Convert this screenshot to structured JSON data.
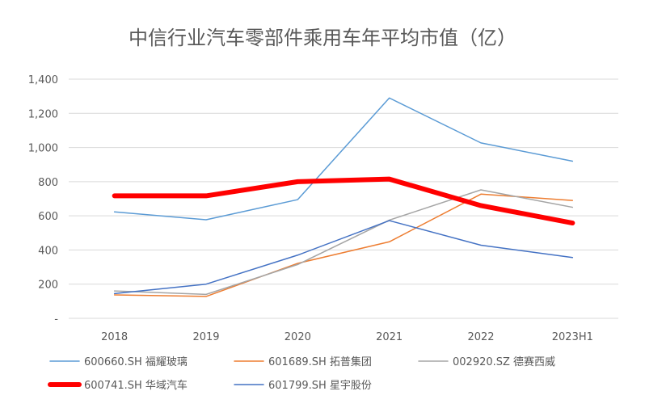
{
  "chart_data": {
    "type": "line",
    "title": "中信行业汽车零部件乘用车年平均市值（亿）",
    "categories": [
      "2018",
      "2019",
      "2020",
      "2021",
      "2022",
      "2023H1"
    ],
    "ylim": [
      0,
      1400
    ],
    "yticks": [
      0,
      200,
      400,
      600,
      800,
      1000,
      1200,
      1400
    ],
    "ytick_labels": [
      "-",
      "200",
      "400",
      "600",
      "800",
      "1,000",
      "1,200",
      "1,400"
    ],
    "grid": true,
    "legend_position": "bottom",
    "series": [
      {
        "name": "600660.SH 福耀玻璃",
        "color": "#5B9BD5",
        "width": 1.5,
        "values": [
          623,
          577,
          695,
          1290,
          1027,
          920
        ]
      },
      {
        "name": "601689.SH 拓普集团",
        "color": "#ED7D31",
        "width": 1.5,
        "values": [
          137,
          128,
          322,
          448,
          727,
          690
        ]
      },
      {
        "name": "002920.SZ 德赛西威",
        "color": "#A5A5A5",
        "width": 1.5,
        "values": [
          160,
          140,
          315,
          575,
          752,
          650
        ]
      },
      {
        "name": "600741.SH 华域汽车",
        "color": "#FF0000",
        "width": 6,
        "values": [
          717,
          717,
          800,
          815,
          660,
          558
        ]
      },
      {
        "name": "601799.SH 星宇股份",
        "color": "#4472C4",
        "width": 1.5,
        "values": [
          145,
          200,
          370,
          572,
          428,
          356
        ]
      }
    ]
  }
}
